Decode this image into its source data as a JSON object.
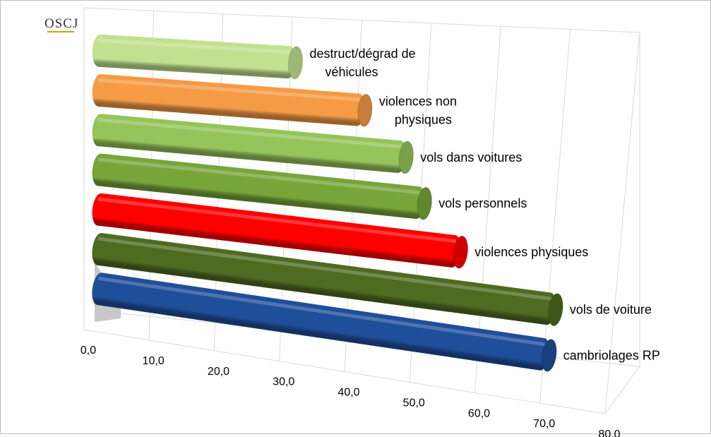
{
  "logo": {
    "text": "OSCJ"
  },
  "chart_data": {
    "type": "bar",
    "orientation": "horizontal",
    "style": "3d-cylinder",
    "categories": [
      "cambriolages RP",
      "vols de voiture",
      "violences physiques",
      "vols personnels",
      "vols dans voitures",
      "violences non physiques",
      "destruct/dégrad de véhicules"
    ],
    "values": [
      70.8,
      71.2,
      56.4,
      50.6,
      47.5,
      41.1,
      30.7
    ],
    "colors": [
      "#1f4e9a",
      "#4f6b22",
      "#ff0000",
      "#77a53a",
      "#95c45a",
      "#f59a45",
      "#c2e08f"
    ],
    "xlim": [
      0,
      80
    ],
    "ticks": [
      "0,0",
      "10,0",
      "20,0",
      "30,0",
      "40,0",
      "50,0",
      "60,0",
      "70,0",
      "80,0"
    ],
    "grid": true,
    "legend": "none"
  }
}
